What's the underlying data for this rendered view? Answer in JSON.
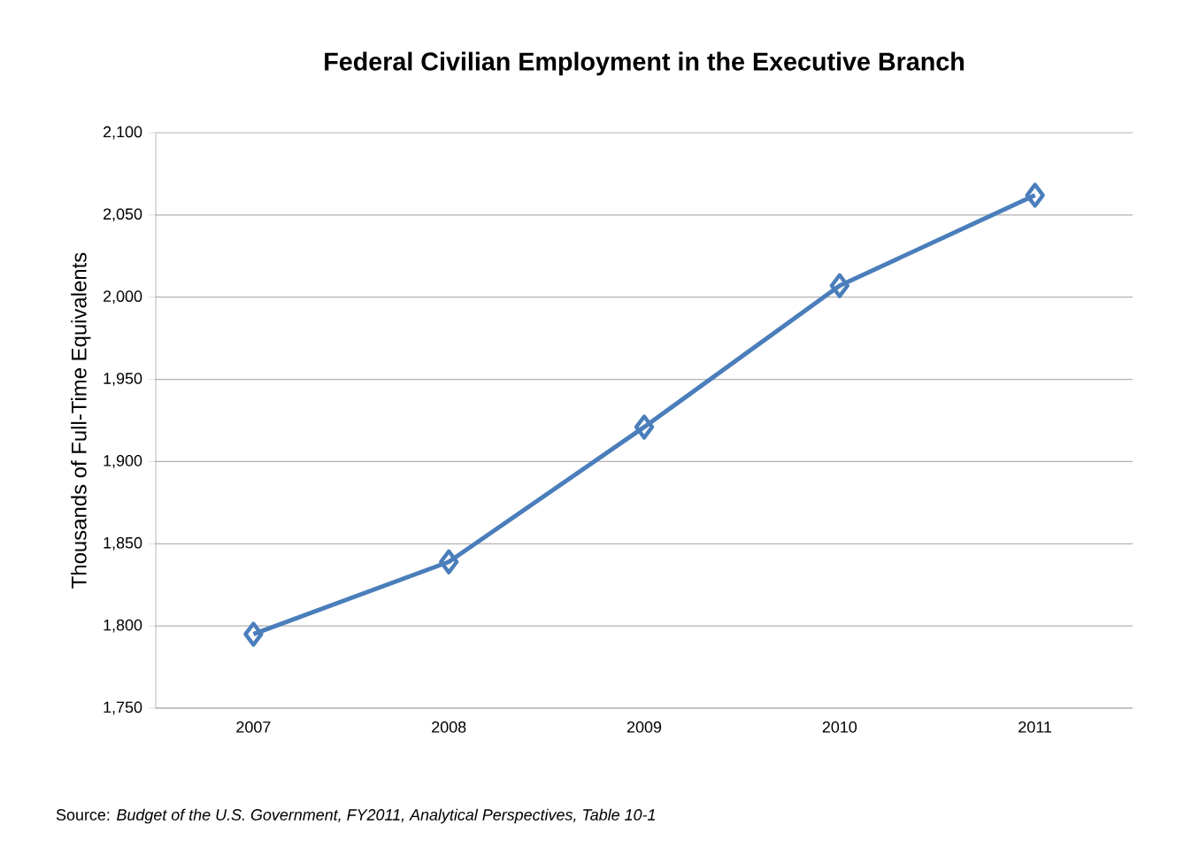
{
  "chart_data": {
    "type": "line",
    "title": "Federal Civilian Employment in the Executive Branch",
    "ylabel": "Thousands of Full-Time Equivalents",
    "annotations": [
      "Source: *Budget of the U.S. Government, FY2011, Analytical Perspectives, Table 10-1*"
    ],
    "categories": [
      "2007",
      "2008",
      "2009",
      "2010",
      "2011"
    ],
    "series": [
      {
        "color": "#4a7ebb",
        "values": [
          1795,
          1839,
          1921,
          2007,
          2062
        ]
      }
    ],
    "ylim": [
      1750,
      2100
    ],
    "yticks": [
      {
        "value": 1750,
        "label": "1,750"
      },
      {
        "value": 1800,
        "label": "1,800"
      },
      {
        "value": 1850,
        "label": "1,850"
      },
      {
        "value": 1900,
        "label": "1,900"
      },
      {
        "value": 1950,
        "label": "1,950"
      },
      {
        "value": 2000,
        "label": "2,000"
      },
      {
        "value": 2050,
        "label": "2,050"
      },
      {
        "value": 2100,
        "label": "2,100"
      }
    ],
    "grid": "y",
    "marker": "diamond",
    "line_style": "solid"
  }
}
